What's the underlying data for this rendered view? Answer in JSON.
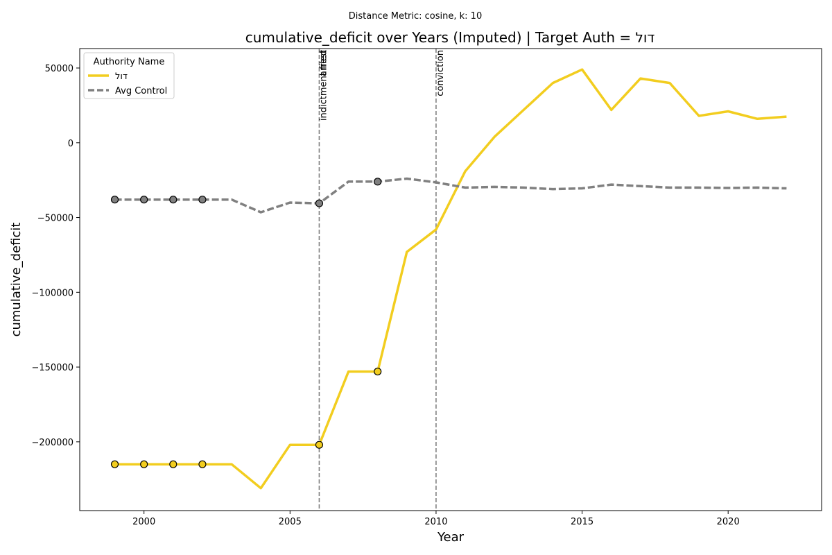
{
  "chart_data": {
    "type": "line",
    "suptitle": "Distance Metric: cosine, k: 10",
    "title": "cumulative_deficit over Years (Imputed) | Target Auth = דול",
    "xlabel": "Year",
    "ylabel": "cumulative_deficit",
    "xlim": [
      1997.8,
      2023.2
    ],
    "ylim": [
      -246000,
      63000
    ],
    "xticks": [
      2000,
      2005,
      2010,
      2015,
      2020
    ],
    "yticks": [
      -200000,
      -150000,
      -100000,
      -50000,
      0,
      50000
    ],
    "grid": false,
    "legend": {
      "title": "Authority Name",
      "placement": "top-left"
    },
    "events": [
      {
        "x": 2006,
        "label": "indictment filed"
      },
      {
        "x": 2006,
        "label": "arrest"
      },
      {
        "x": 2010,
        "label": "conviction"
      }
    ],
    "x": [
      1999,
      2000,
      2001,
      2002,
      2003,
      2004,
      2005,
      2006,
      2007,
      2008,
      2009,
      2010,
      2011,
      2012,
      2013,
      2014,
      2015,
      2016,
      2017,
      2018,
      2019,
      2020,
      2021,
      2022
    ],
    "series": [
      {
        "name": "דול",
        "color": "#f2cd1f",
        "style": "solid",
        "values": [
          -215000,
          -215000,
          -215000,
          -215000,
          -215000,
          -231000,
          -202000,
          -202000,
          -153000,
          -153000,
          -73000,
          -58000,
          -19000,
          4000,
          22000,
          40000,
          49000,
          22000,
          43000,
          40000,
          18000,
          21000,
          16000,
          17500
        ],
        "imputed_x": [
          1999,
          2000,
          2001,
          2002,
          2006,
          2008
        ]
      },
      {
        "name": "Avg Control",
        "color": "#808080",
        "style": "dashed",
        "values": [
          -38000,
          -38000,
          -38000,
          -38000,
          -38000,
          -46500,
          -40000,
          -40500,
          -26000,
          -26000,
          -24000,
          -26500,
          -30000,
          -29500,
          -30000,
          -31000,
          -30500,
          -28000,
          -29000,
          -30000,
          -30000,
          -30200,
          -30000,
          -30500
        ],
        "imputed_x": [
          1999,
          2000,
          2001,
          2002,
          2006,
          2008
        ]
      }
    ]
  }
}
